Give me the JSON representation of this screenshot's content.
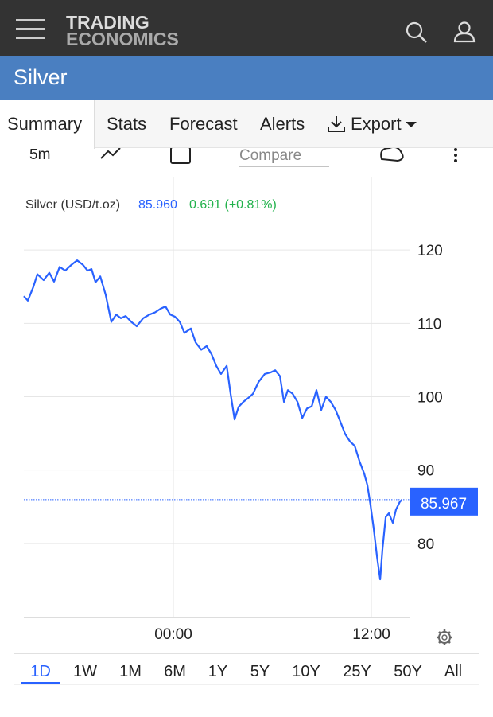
{
  "header": {
    "logo_line1": "TRADING",
    "logo_line2": "ECONOMICS"
  },
  "title": "Silver",
  "tabs": [
    "Summary",
    "Stats",
    "Forecast",
    "Alerts",
    "Export"
  ],
  "toolbar": {
    "interval": "5m",
    "compare_placeholder": "Compare"
  },
  "chart_data": {
    "type": "line",
    "legend": {
      "price": "85.960",
      "change": "0.691 (+0.81%)"
    },
    "x": [
      -9.06,
      -8.82,
      -8.48,
      -8.24,
      -7.86,
      -7.52,
      -7.23,
      -6.89,
      -6.55,
      -6.17,
      -5.83,
      -5.49,
      -5.2,
      -4.96,
      -4.72,
      -4.43,
      -4.1,
      -3.76,
      -3.47,
      -3.18,
      -2.89,
      -2.55,
      -2.22,
      -1.83,
      -1.45,
      -1.11,
      -0.77,
      -0.48,
      -0.19,
      0.1,
      0.39,
      0.67,
      1.06,
      1.35,
      1.69,
      2.02,
      2.31,
      2.6,
      2.89,
      3.23,
      3.47,
      3.71,
      3.95,
      4.24,
      4.53,
      4.82,
      5.16,
      5.54,
      5.88,
      6.17,
      6.46,
      6.7,
      6.94,
      7.23,
      7.52,
      7.81,
      8.1,
      8.39,
      8.67,
      8.96,
      9.25,
      9.54,
      9.83,
      10.12,
      10.41,
      10.7,
      10.99,
      11.28,
      11.57,
      11.76,
      11.95,
      12.14,
      12.34,
      12.53,
      12.67,
      12.87,
      13.06,
      13.3,
      13.49,
      13.73,
      13.83
    ],
    "series": [
      {
        "name": "Silver (USD/t.oz)",
        "color": "#2962ff",
        "values": [
          113.7,
          113.1,
          115.0,
          116.7,
          115.9,
          116.9,
          115.7,
          117.7,
          117.2,
          118.0,
          118.6,
          118.0,
          117.2,
          117.4,
          115.6,
          116.4,
          113.9,
          110.2,
          111.2,
          110.7,
          111.0,
          110.2,
          109.6,
          110.7,
          111.2,
          111.5,
          112.0,
          112.3,
          111.2,
          110.9,
          110.2,
          108.7,
          109.3,
          107.4,
          106.4,
          106.9,
          105.8,
          104.2,
          103.1,
          104.2,
          100.4,
          96.9,
          98.6,
          99.3,
          99.8,
          100.4,
          102.0,
          103.1,
          103.3,
          103.6,
          102.8,
          99.3,
          100.9,
          100.4,
          99.3,
          97.1,
          98.4,
          98.7,
          100.9,
          98.2,
          100.0,
          99.3,
          98.2,
          96.6,
          94.9,
          93.9,
          93.3,
          91.2,
          89.5,
          87.9,
          85.2,
          82.0,
          78.2,
          75.1,
          79.2,
          83.6,
          84.1,
          82.8,
          84.6,
          85.7,
          85.9
        ]
      }
    ],
    "last_value": 85.967,
    "xlim": [
      -9.06,
      14.31
    ],
    "ylim": [
      70,
      130
    ],
    "xticks": [
      {
        "value": 0,
        "label": "00:00"
      },
      {
        "value": 12,
        "label": "12:00"
      }
    ],
    "yticks": [
      80,
      90,
      100,
      110,
      120
    ],
    "grid": true
  },
  "timeframes": [
    "1D",
    "1W",
    "1M",
    "6M",
    "1Y",
    "5Y",
    "10Y",
    "25Y",
    "50Y",
    "All"
  ]
}
